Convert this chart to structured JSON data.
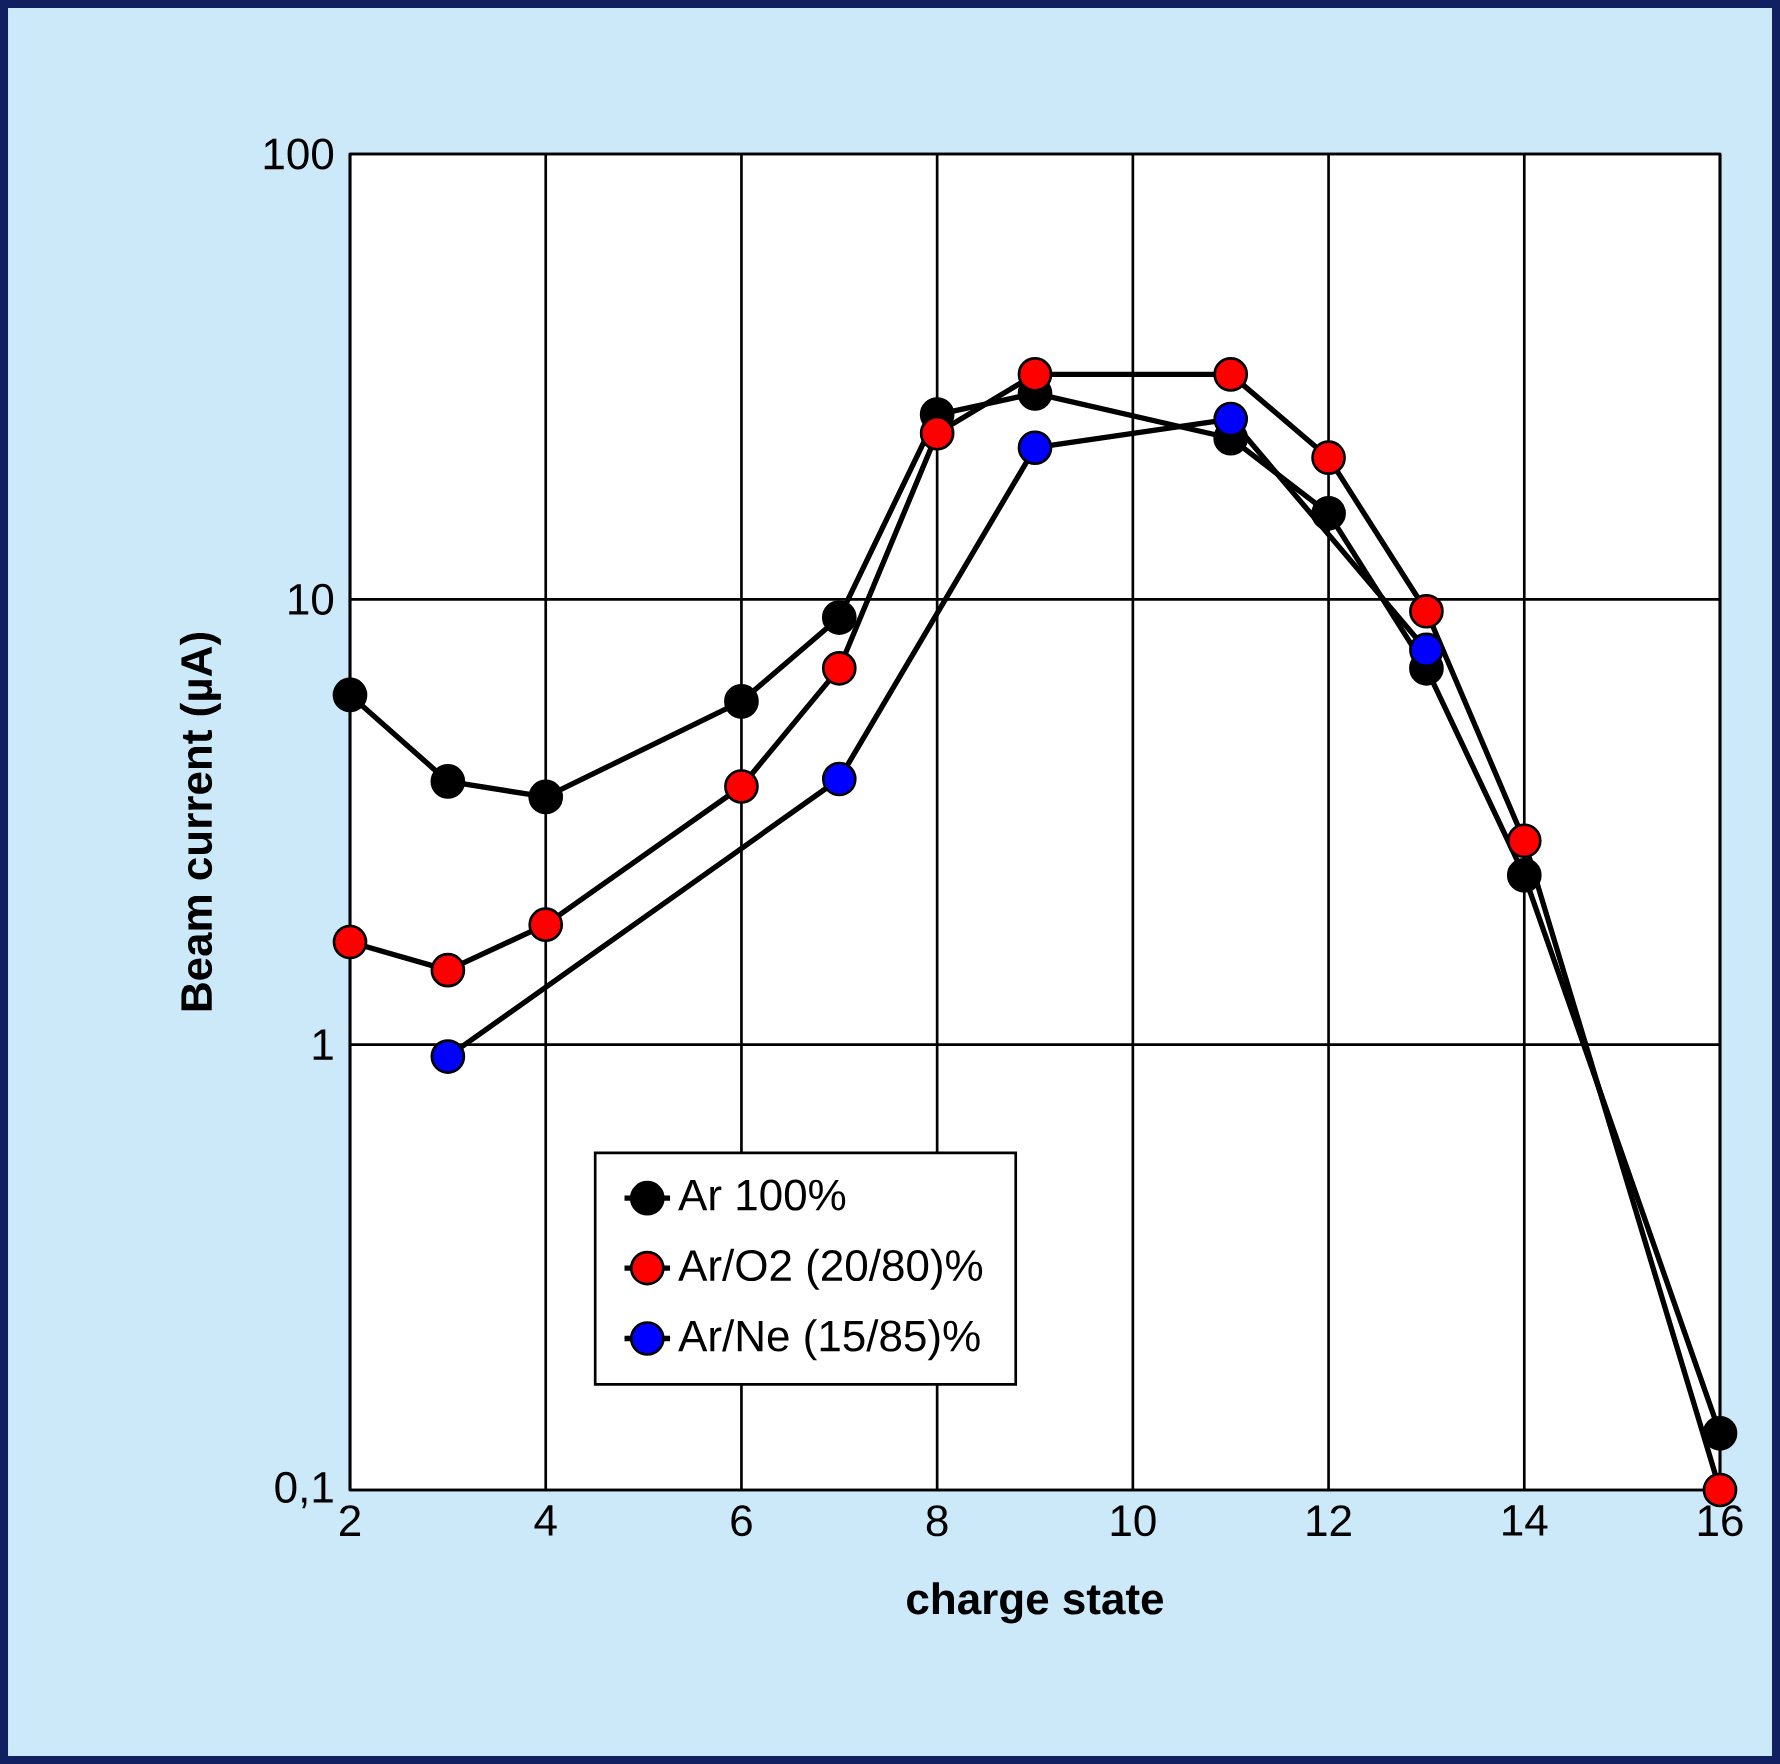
{
  "chart_data": {
    "type": "line",
    "xlabel": "charge state",
    "ylabel": "Beam current (µA)",
    "log": "y",
    "grid": true,
    "marker": "circle",
    "line_style": "solid",
    "legend": "bottom left",
    "xlim": [
      2,
      16
    ],
    "xticks": [
      2,
      4,
      6,
      8,
      10,
      12,
      14,
      16
    ],
    "ylim": [
      0.1,
      100
    ],
    "yticks": [
      {
        "value": 0.1,
        "label": "0,1"
      },
      1,
      10,
      100
    ],
    "series": [
      {
        "name": "Ar 100%",
        "color": "#000000",
        "x": [
          2,
          3,
          4,
          6,
          7,
          8,
          9,
          11,
          12,
          13,
          14,
          16
        ],
        "values": [
          6.1,
          3.9,
          3.6,
          5.9,
          9.1,
          26,
          29,
          23,
          15.6,
          7.0,
          2.4,
          0.134
        ]
      },
      {
        "name": "Ar/O2 (20/80)%",
        "color": "#ff0000",
        "x": [
          2,
          3,
          4,
          6,
          7,
          8,
          9,
          11,
          12,
          13,
          14,
          16
        ],
        "values": [
          1.7,
          1.47,
          1.86,
          3.8,
          7.0,
          23.6,
          32,
          32,
          20.8,
          9.4,
          2.87,
          0.1
        ]
      },
      {
        "name": "Ar/Ne (15/85)%",
        "color": "#0000ff",
        "x": [
          3,
          7,
          9,
          11,
          13
        ],
        "values": [
          0.94,
          3.95,
          21.9,
          25.4,
          7.7
        ]
      }
    ]
  }
}
